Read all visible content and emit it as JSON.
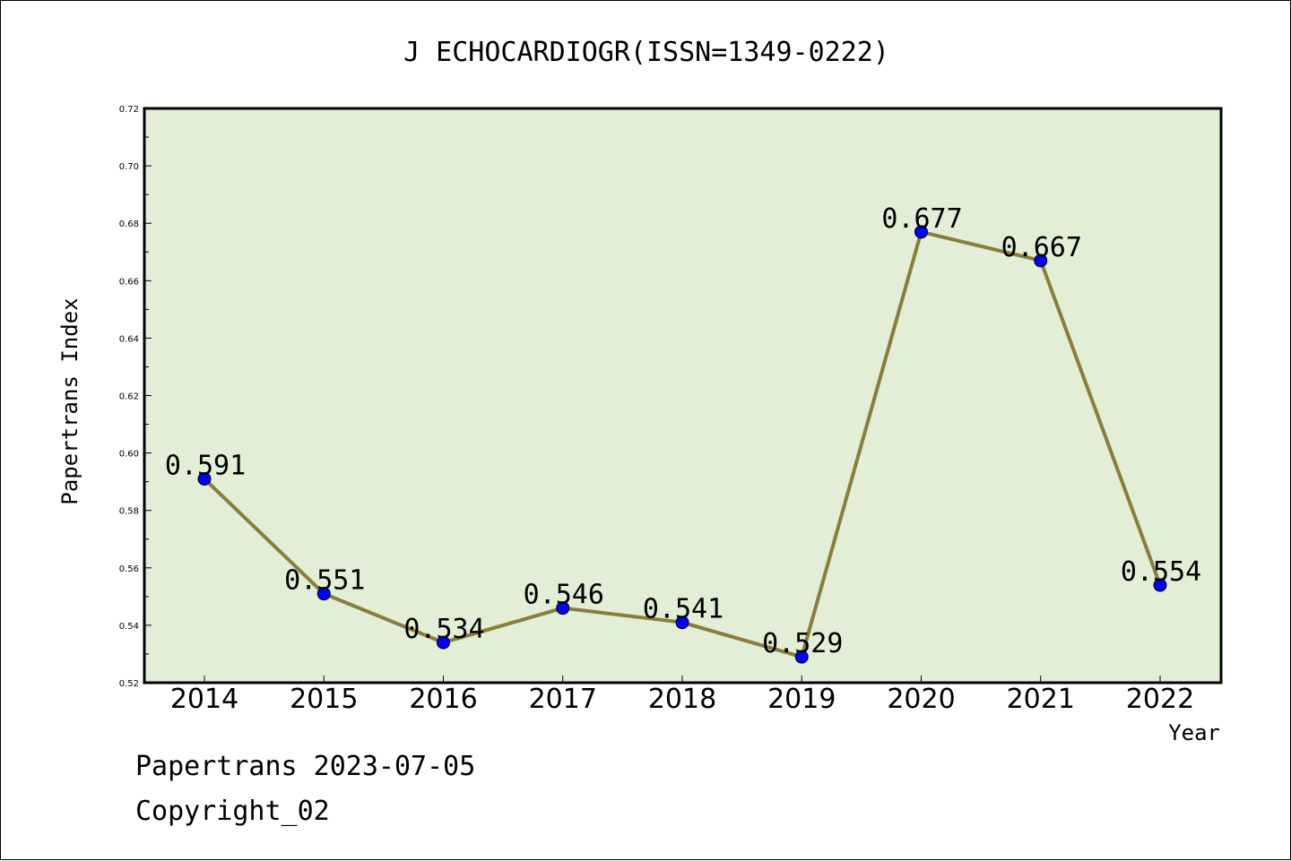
{
  "chart_data": {
    "type": "line",
    "title": "J ECHOCARDIOGR(ISSN=1349-0222)",
    "xlabel": "Year",
    "ylabel": "Papertrans Index",
    "categories": [
      "2014",
      "2015",
      "2016",
      "2017",
      "2018",
      "2019",
      "2020",
      "2021",
      "2022"
    ],
    "values": [
      0.591,
      0.551,
      0.534,
      0.546,
      0.541,
      0.529,
      0.677,
      0.667,
      0.554
    ],
    "data_labels": [
      "0.591",
      "0.551",
      "0.534",
      "0.546",
      "0.541",
      "0.529",
      "0.677",
      "0.667",
      "0.554"
    ],
    "ylim": [
      0.52,
      0.72
    ],
    "yticks": [
      "0.52",
      "0.54",
      "0.56",
      "0.58",
      "0.60",
      "0.62",
      "0.64",
      "0.66",
      "0.68",
      "0.70",
      "0.72"
    ],
    "grid": false,
    "legend": "none"
  },
  "footer": {
    "line1": "Papertrans 2023-07-05",
    "line2": "Copyright_02"
  },
  "colors": {
    "plot_bg": "#e2efd6",
    "line": "#8b7d3a",
    "marker": "#0000ff",
    "axis": "#000000"
  }
}
